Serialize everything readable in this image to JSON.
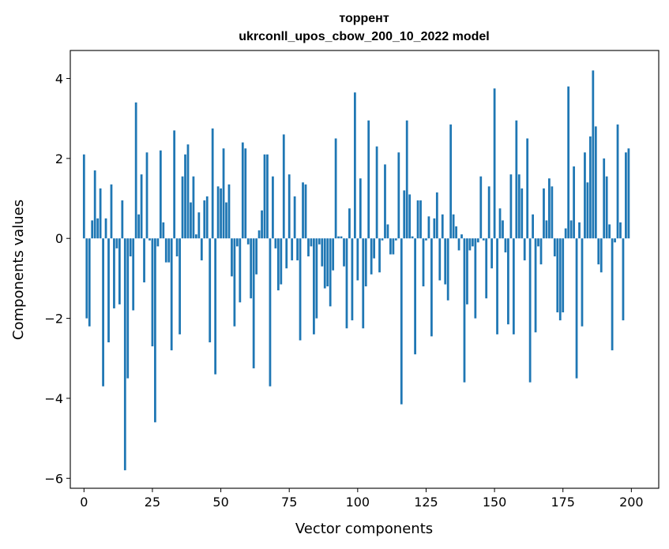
{
  "chart_data": {
    "type": "bar",
    "title_line1": "торрент",
    "title_line2": "ukrconll_upos_cbow_200_10_2022 model",
    "xlabel": "Vector components",
    "ylabel": "Components values",
    "xlim": [
      -5,
      210
    ],
    "ylim": [
      -6.25,
      4.7
    ],
    "xticks": [
      0,
      25,
      50,
      75,
      100,
      125,
      150,
      175,
      200
    ],
    "yticks": [
      -6,
      -4,
      -2,
      0,
      2,
      4
    ],
    "ytick_labels": [
      "−6",
      "−4",
      "−2",
      "0",
      "2",
      "4"
    ],
    "grid": false,
    "bar_color": "#1f77b4",
    "x": [
      0,
      1,
      2,
      3,
      4,
      5,
      6,
      7,
      8,
      9,
      10,
      11,
      12,
      13,
      14,
      15,
      16,
      17,
      18,
      19,
      20,
      21,
      22,
      23,
      24,
      25,
      26,
      27,
      28,
      29,
      30,
      31,
      32,
      33,
      34,
      35,
      36,
      37,
      38,
      39,
      40,
      41,
      42,
      43,
      44,
      45,
      46,
      47,
      48,
      49,
      50,
      51,
      52,
      53,
      54,
      55,
      56,
      57,
      58,
      59,
      60,
      61,
      62,
      63,
      64,
      65,
      66,
      67,
      68,
      69,
      70,
      71,
      72,
      73,
      74,
      75,
      76,
      77,
      78,
      79,
      80,
      81,
      82,
      83,
      84,
      85,
      86,
      87,
      88,
      89,
      90,
      91,
      92,
      93,
      94,
      95,
      96,
      97,
      98,
      99,
      100,
      101,
      102,
      103,
      104,
      105,
      106,
      107,
      108,
      109,
      110,
      111,
      112,
      113,
      114,
      115,
      116,
      117,
      118,
      119,
      120,
      121,
      122,
      123,
      124,
      125,
      126,
      127,
      128,
      129,
      130,
      131,
      132,
      133,
      134,
      135,
      136,
      137,
      138,
      139,
      140,
      141,
      142,
      143,
      144,
      145,
      146,
      147,
      148,
      149,
      150,
      151,
      152,
      153,
      154,
      155,
      156,
      157,
      158,
      159,
      160,
      161,
      162,
      163,
      164,
      165,
      166,
      167,
      168,
      169,
      170,
      171,
      172,
      173,
      174,
      175,
      176,
      177,
      178,
      179,
      180,
      181,
      182,
      183,
      184,
      185,
      186,
      187,
      188,
      189,
      190,
      191,
      192,
      193,
      194,
      195,
      196,
      197,
      198,
      199
    ],
    "values": [
      2.1,
      -2.0,
      -2.2,
      0.45,
      1.7,
      0.5,
      1.25,
      -3.7,
      0.5,
      -2.6,
      1.35,
      -1.75,
      -0.25,
      -1.65,
      0.95,
      -5.8,
      -3.5,
      -0.45,
      -1.8,
      3.4,
      0.6,
      1.6,
      -1.1,
      2.15,
      -0.05,
      -2.7,
      -4.6,
      -0.2,
      2.2,
      0.4,
      -0.6,
      -0.6,
      -2.8,
      2.7,
      -0.45,
      -2.4,
      1.55,
      2.1,
      2.35,
      0.9,
      1.55,
      0.1,
      0.65,
      -0.55,
      0.95,
      1.05,
      -2.6,
      2.75,
      -3.4,
      1.3,
      1.25,
      2.25,
      0.9,
      1.35,
      -0.95,
      -2.2,
      -0.2,
      -1.6,
      2.4,
      2.25,
      -0.15,
      -1.5,
      -3.25,
      -0.9,
      0.2,
      0.7,
      2.1,
      2.1,
      -3.7,
      1.55,
      -0.25,
      -1.3,
      -1.15,
      2.6,
      -0.75,
      1.6,
      -0.55,
      1.05,
      -0.55,
      -2.55,
      1.4,
      1.35,
      -0.45,
      -0.2,
      -2.4,
      -2.0,
      -0.15,
      -0.7,
      -1.25,
      -1.2,
      -1.7,
      -0.8,
      2.5,
      0.05,
      0.05,
      -0.7,
      -2.25,
      0.75,
      -2.05,
      3.65,
      -1.05,
      1.5,
      -2.25,
      -1.2,
      2.95,
      -0.9,
      -0.5,
      2.3,
      -0.85,
      -0.05,
      1.85,
      0.35,
      -0.4,
      -0.4,
      -0.05,
      2.15,
      -4.15,
      1.2,
      2.95,
      1.1,
      0.05,
      -2.9,
      0.95,
      0.95,
      -1.2,
      -0.05,
      0.55,
      -2.45,
      0.5,
      1.15,
      -1.05,
      0.6,
      -1.15,
      -1.55,
      2.85,
      0.6,
      0.3,
      -0.3,
      0.1,
      -3.6,
      -1.65,
      -0.3,
      -0.2,
      -2.0,
      -0.1,
      1.55,
      -0.05,
      -1.5,
      1.3,
      -0.75,
      3.75,
      -2.4,
      0.75,
      0.45,
      -0.35,
      -2.15,
      1.6,
      -2.4,
      2.95,
      1.6,
      1.25,
      -0.55,
      2.5,
      -3.6,
      0.6,
      -2.35,
      -0.2,
      -0.65,
      1.25,
      0.45,
      1.5,
      1.3,
      -0.45,
      -1.85,
      -2.05,
      -1.85,
      0.25,
      3.8,
      0.45,
      1.8,
      -3.5,
      0.4,
      -2.2,
      2.15,
      1.4,
      2.55,
      4.2,
      2.8,
      -0.65,
      -0.85,
      2.0,
      1.55,
      0.35,
      -2.8,
      -0.1,
      2.85,
      0.4,
      -2.05,
      2.15,
      2.25
    ]
  }
}
